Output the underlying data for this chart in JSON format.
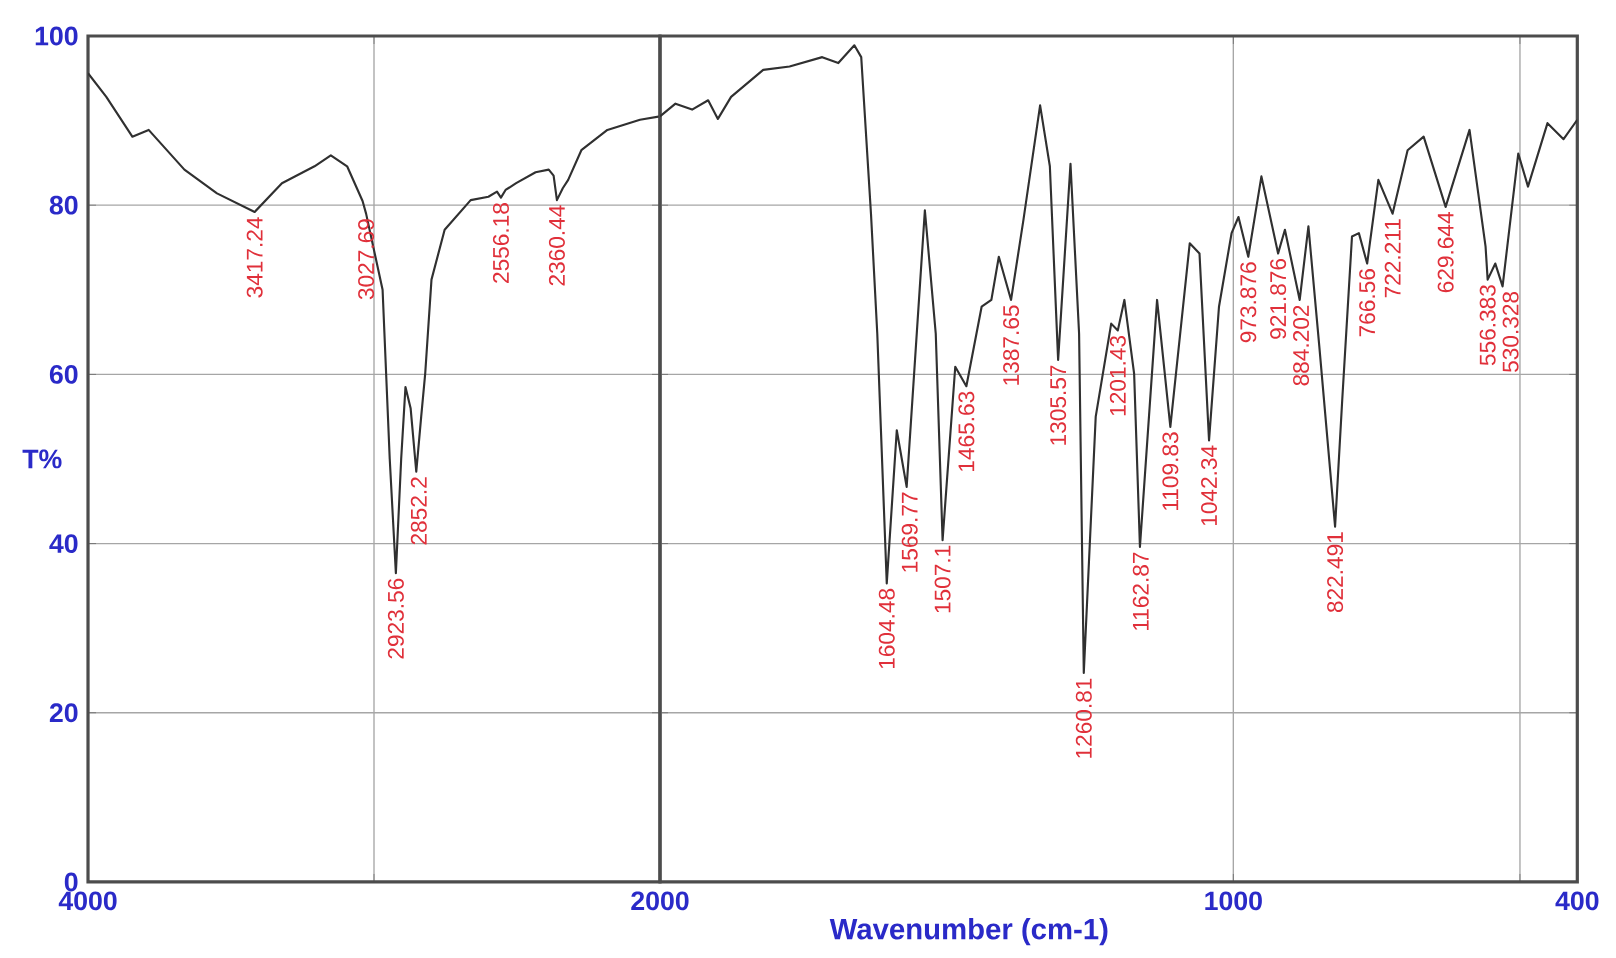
{
  "chart_data": [
    {
      "type": "line",
      "ylabel": "T%",
      "xlim": [
        4000,
        2000
      ],
      "ylim": [
        0,
        100
      ],
      "xticks": [
        4000,
        {
          "value": 3000,
          "label": null
        },
        2000
      ],
      "yticks": [
        0,
        20,
        40,
        60,
        80,
        100
      ],
      "grid": true,
      "series": [
        {
          "color": "#303030",
          "x": [
            4000,
            3936,
            3845,
            3788,
            3663,
            3549,
            3417.24,
            3322,
            3208,
            3151,
            3094,
            3040,
            3027.69,
            2970,
            2945,
            2923.56,
            2905,
            2890,
            2872,
            2852.2,
            2835,
            2821,
            2799,
            2753,
            2662,
            2600,
            2570,
            2556.18,
            2540,
            2503,
            2435,
            2389,
            2372,
            2360.44,
            2340,
            2321,
            2275,
            2184,
            2070,
            2000
          ],
          "values": [
            95.6,
            92.8,
            88.1,
            88.9,
            84.2,
            81.4,
            79.2,
            82.6,
            84.6,
            85.9,
            84.6,
            80.5,
            79.0,
            70,
            50,
            36.5,
            50,
            58.5,
            56,
            48.5,
            55,
            60.1,
            71.2,
            77.1,
            80.6,
            81.0,
            81.6,
            80.9,
            81.8,
            82.6,
            83.9,
            84.2,
            83.5,
            80.6,
            82.0,
            83.0,
            86.5,
            88.9,
            90.1,
            90.5
          ]
        }
      ],
      "annotations": [
        {
          "text": "3417.24",
          "x": 3417.24,
          "y": 79.2
        },
        {
          "text": "3027.69",
          "x": 3027.69,
          "y": 79.0
        },
        {
          "text": "2923.56",
          "x": 2923.56,
          "y": 36.5
        },
        {
          "text": "2852.2",
          "x": 2852.2,
          "y": 48.5
        },
        {
          "text": "2556.18",
          "x": 2556.18,
          "y": 80.9
        },
        {
          "text": "2360.44",
          "x": 2360.44,
          "y": 80.6
        }
      ]
    },
    {
      "type": "line",
      "xlabel": "Wavenumber (cm-1)",
      "xlim": [
        2000,
        400
      ],
      "ylim": [
        0,
        100
      ],
      "xticks": [
        {
          "value": 2000,
          "label": null
        },
        1000,
        {
          "value": 500,
          "label": null
        },
        400
      ],
      "yticks": [
        0,
        20,
        40,
        60,
        80,
        100
      ],
      "tick_labels": "x",
      "grid": true,
      "series": [
        {
          "color": "#303030",
          "x": [
            2000,
            1973,
            1944,
            1916,
            1899,
            1876,
            1820,
            1774,
            1717,
            1689,
            1661,
            1649,
            1632,
            1621,
            1604.48,
            1587,
            1569.77,
            1538,
            1519,
            1507.1,
            1485,
            1465.63,
            1439,
            1422,
            1409,
            1387.65,
            1366,
            1337,
            1320,
            1305.57,
            1284,
            1269,
            1260.81,
            1240,
            1213,
            1201.43,
            1190,
            1173,
            1162.87,
            1133,
            1109.83,
            1076,
            1059,
            1042.34,
            1025,
            1003,
            991,
            973.876,
            951,
            921.876,
            910,
            884.202,
            869,
            850,
            822.491,
            810,
            793,
            781,
            766.56,
            747,
            722.211,
            696,
            668,
            629.644,
            588,
            560,
            556.383,
            543,
            530.328,
            503,
            486,
            452,
            424,
            400
          ],
          "values": [
            90.5,
            92.0,
            91.3,
            92.4,
            90.2,
            92.8,
            96.0,
            96.4,
            97.5,
            96.8,
            98.9,
            97.5,
            79.0,
            64.8,
            35.3,
            53.4,
            46.7,
            79.4,
            64.8,
            40.4,
            60.9,
            58.6,
            68.0,
            68.8,
            73.9,
            68.8,
            78.3,
            91.8,
            84.6,
            61.7,
            84.9,
            64.8,
            24.7,
            55,
            66.0,
            65.2,
            68.8,
            60.1,
            39.6,
            68.8,
            53.8,
            75.5,
            74.3,
            52.2,
            68.0,
            76.7,
            78.6,
            73.9,
            83.4,
            74.3,
            77.1,
            68.8,
            77.5,
            63.3,
            42.0,
            57.0,
            76.3,
            76.7,
            73.1,
            83.0,
            79.0,
            86.5,
            88.1,
            79.8,
            88.9,
            75.1,
            71.2,
            73.1,
            70.4,
            86.1,
            82.2,
            89.7,
            87.8,
            90.1
          ]
        }
      ],
      "annotations": [
        {
          "text": "1604.48",
          "x": 1604.48,
          "y": 35.3
        },
        {
          "text": "1569.77",
          "x": 1569.77,
          "y": 46.7
        },
        {
          "text": "1507.1",
          "x": 1507.1,
          "y": 40.4
        },
        {
          "text": "1465.63",
          "x": 1465.63,
          "y": 58.6
        },
        {
          "text": "1387.65",
          "x": 1387.65,
          "y": 68.8
        },
        {
          "text": "1305.57",
          "x": 1305.57,
          "y": 61.7
        },
        {
          "text": "1260.81",
          "x": 1260.81,
          "y": 24.7
        },
        {
          "text": "1201.43",
          "x": 1201.43,
          "y": 65.2
        },
        {
          "text": "1162.87",
          "x": 1162.87,
          "y": 39.6
        },
        {
          "text": "1109.83",
          "x": 1109.83,
          "y": 53.8
        },
        {
          "text": "1042.34",
          "x": 1042.34,
          "y": 52.2
        },
        {
          "text": "973.876",
          "x": 973.876,
          "y": 73.9
        },
        {
          "text": "921.876",
          "x": 921.876,
          "y": 74.3
        },
        {
          "text": "884.202",
          "x": 884.202,
          "y": 68.8
        },
        {
          "text": "822.491",
          "x": 822.491,
          "y": 42.0
        },
        {
          "text": "766.56",
          "x": 766.56,
          "y": 73.1
        },
        {
          "text": "722.211",
          "x": 722.211,
          "y": 79.0
        },
        {
          "text": "629.644",
          "x": 629.644,
          "y": 79.8
        },
        {
          "text": "556.383",
          "x": 556.383,
          "y": 71.2
        },
        {
          "text": "530.328",
          "x": 530.328,
          "y": 70.4
        }
      ]
    }
  ]
}
